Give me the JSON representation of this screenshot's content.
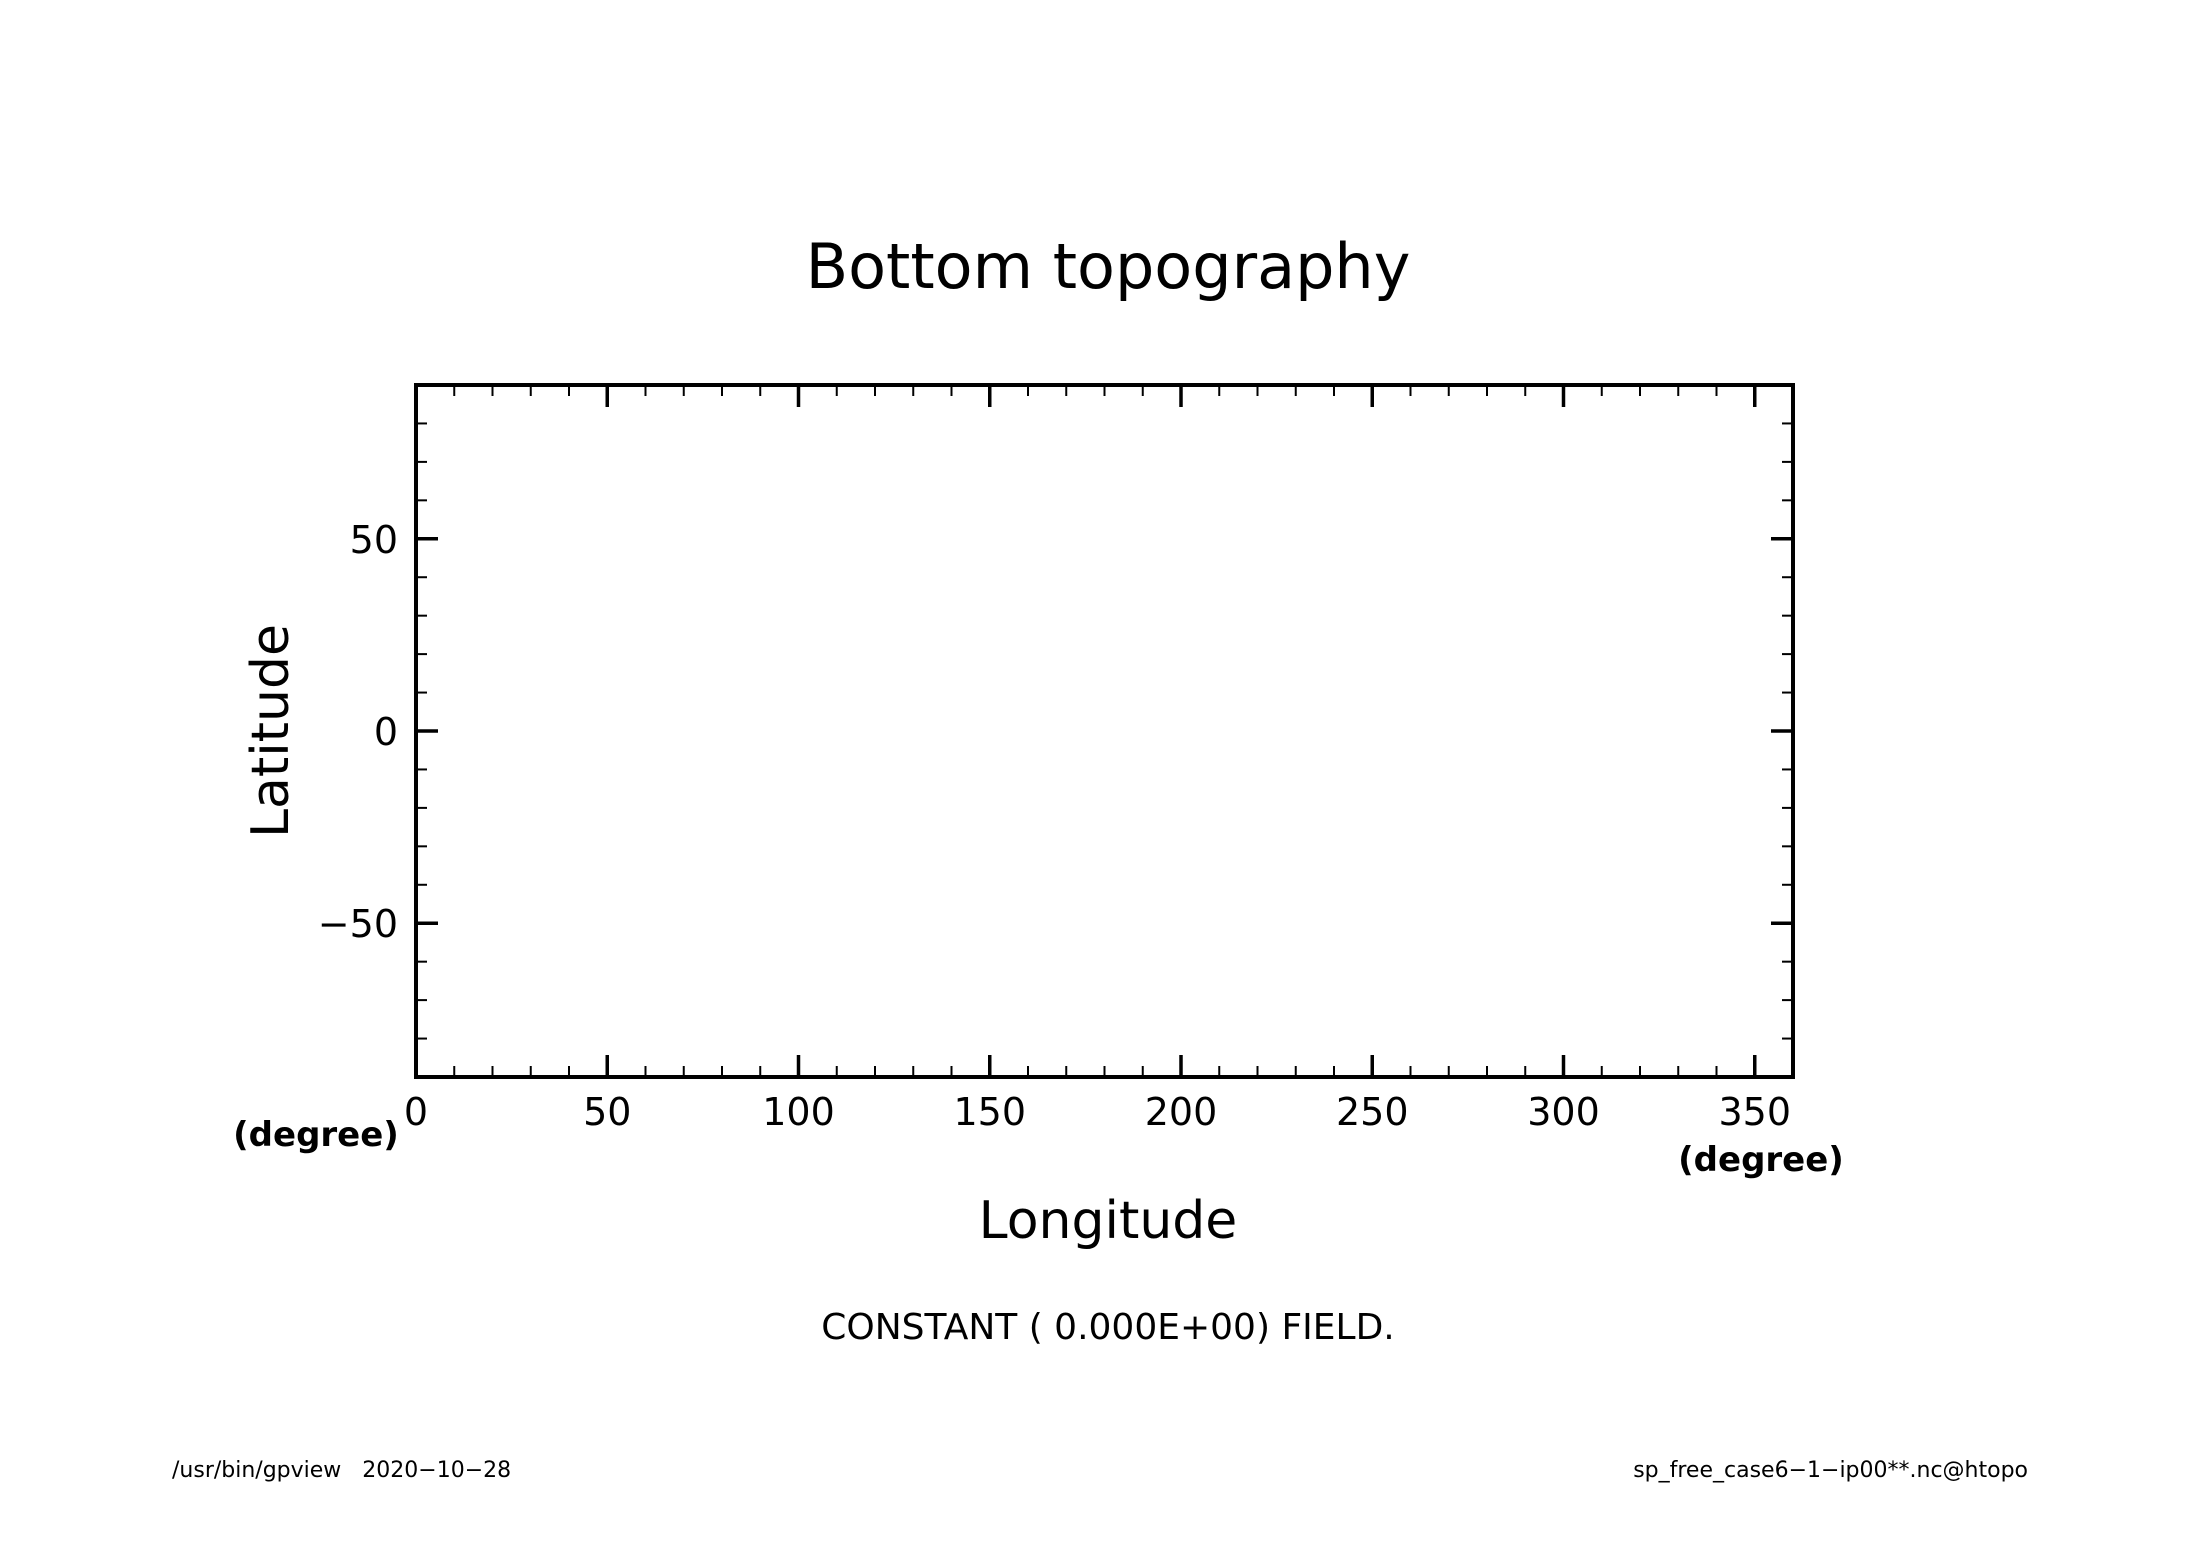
{
  "chart_data": {
    "type": "heatmap",
    "title": "Bottom topography",
    "xlabel": "Longitude",
    "ylabel": "Latitude",
    "x_unit": "(degree)",
    "y_unit": "(degree)",
    "xlim": [
      0,
      360
    ],
    "ylim": [
      -90,
      90
    ],
    "x_ticks": [
      0,
      50,
      100,
      150,
      200,
      250,
      300,
      350
    ],
    "x_tick_labels": [
      "0",
      "50",
      "100",
      "150",
      "200",
      "250",
      "300",
      "350"
    ],
    "y_ticks": [
      50,
      0,
      -50
    ],
    "y_tick_labels": [
      "50",
      "0",
      "−50"
    ],
    "x_minor_step": 10,
    "y_minor_step": 10,
    "grid": false,
    "field_value": 0.0,
    "annotation": "CONSTANT ( 0.000E+00) FIELD."
  },
  "footer": {
    "program": "/usr/bin/gpview   2020−10−28",
    "source": "sp_free_case6−1−ip00**.nc@htopo"
  },
  "colors": {
    "ink": "#000000",
    "background": "#ffffff"
  }
}
